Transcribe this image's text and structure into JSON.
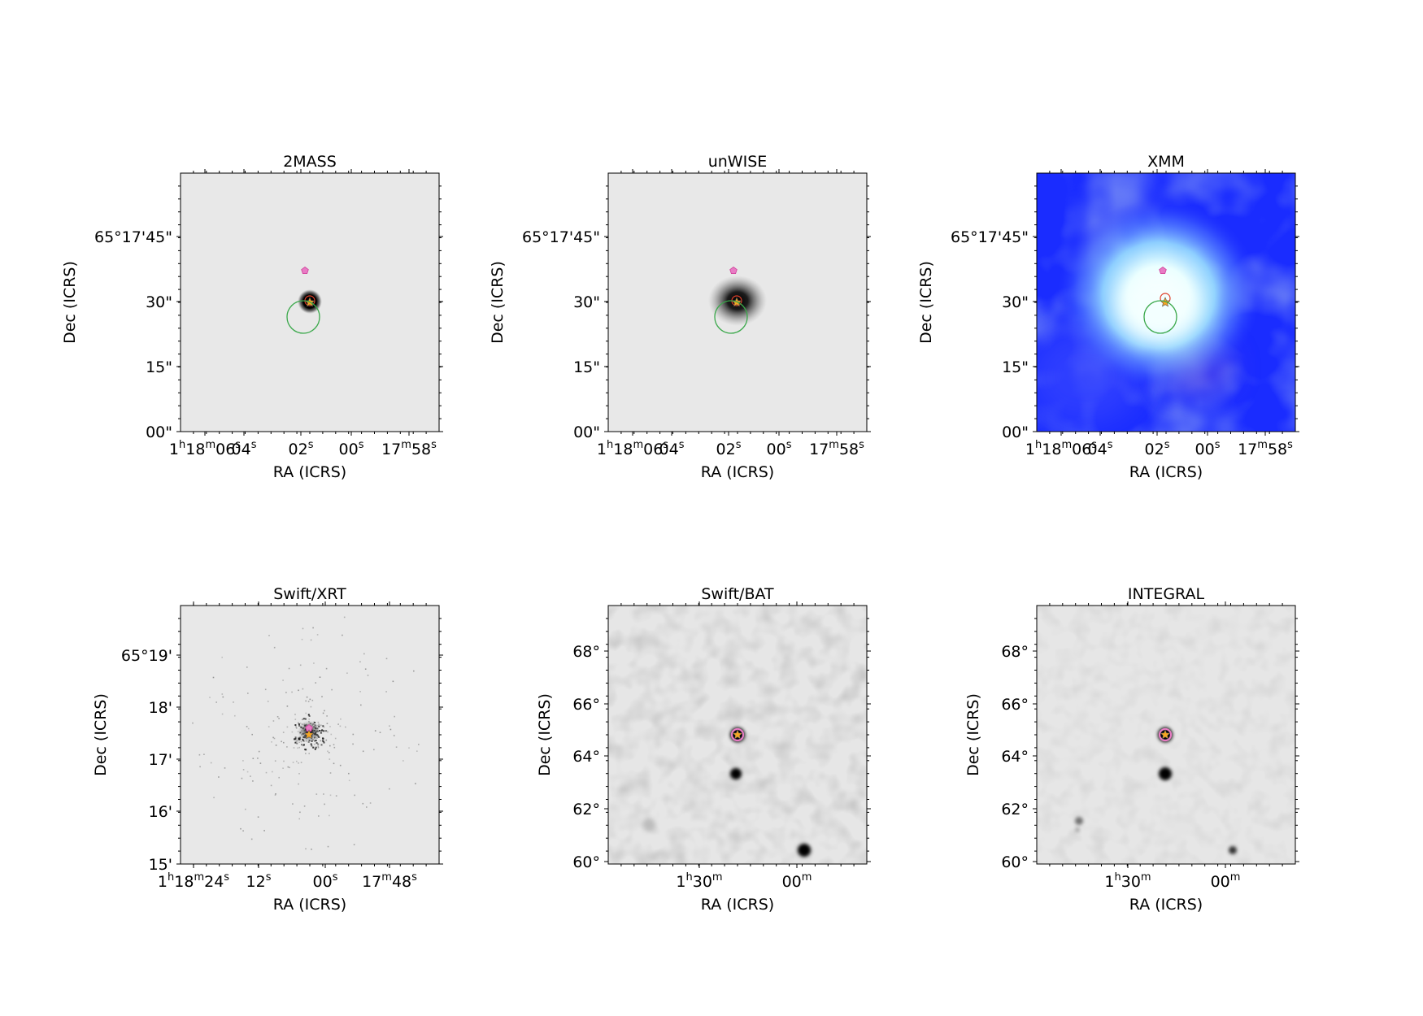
{
  "figure": {
    "panels": [
      {
        "id": "p2mass",
        "title": "2MASS",
        "xlabel": "RA (ICRS)",
        "ylabel": "Dec (ICRS)",
        "image_style": "grey-sharp-source",
        "markers": [
          "pink-pentagon",
          "red-circle",
          "orange-star",
          "green-circle"
        ],
        "yticks": [
          "65°17'45\"",
          "30\"",
          "15\"",
          "00\""
        ],
        "xticks": [
          [
            [
              "1",
              "h"
            ],
            [
              "18",
              "m"
            ],
            [
              "06",
              "s"
            ]
          ],
          [
            [
              "04",
              "s"
            ]
          ],
          [
            [
              "02",
              "s"
            ]
          ],
          [
            [
              "00",
              "s"
            ]
          ],
          [
            [
              "17",
              "m"
            ],
            [
              "58",
              "s"
            ]
          ]
        ]
      },
      {
        "id": "punwise",
        "title": "unWISE",
        "xlabel": "RA (ICRS)",
        "ylabel": "Dec (ICRS)",
        "image_style": "grey-diffuse-source",
        "markers": [
          "pink-pentagon",
          "red-circle",
          "orange-star",
          "green-circle"
        ],
        "yticks": [
          "65°17'45\"",
          "30\"",
          "15\"",
          "00\""
        ],
        "xticks": [
          [
            [
              "1",
              "h"
            ],
            [
              "18",
              "m"
            ],
            [
              "06",
              "s"
            ]
          ],
          [
            [
              "04",
              "s"
            ]
          ],
          [
            [
              "02",
              "s"
            ]
          ],
          [
            [
              "00",
              "s"
            ]
          ],
          [
            [
              "17",
              "m"
            ],
            [
              "58",
              "s"
            ]
          ]
        ]
      },
      {
        "id": "pxmm",
        "title": "XMM",
        "xlabel": "RA (ICRS)",
        "ylabel": "Dec (ICRS)",
        "image_style": "blue-rgb",
        "markers": [
          "pink-pentagon",
          "red-circle",
          "orange-star",
          "green-circle"
        ],
        "yticks": [
          "65°17'45\"",
          "30\"",
          "15\"",
          "00\""
        ],
        "xticks": [
          [
            [
              "1",
              "h"
            ],
            [
              "18",
              "m"
            ],
            [
              "06",
              "s"
            ]
          ],
          [
            [
              "04",
              "s"
            ]
          ],
          [
            [
              "02",
              "s"
            ]
          ],
          [
            [
              "00",
              "s"
            ]
          ],
          [
            [
              "17",
              "m"
            ],
            [
              "58",
              "s"
            ]
          ]
        ]
      },
      {
        "id": "pxrt",
        "title": "Swift/XRT",
        "xlabel": "RA (ICRS)",
        "ylabel": "Dec (ICRS)",
        "image_style": "grey-photon-events",
        "markers": [
          "pink-pentagon",
          "orange-star"
        ],
        "yticks": [
          "65°19'",
          "18'",
          "17'",
          "16'",
          "15'"
        ],
        "xticks": [
          [
            [
              "1",
              "h"
            ],
            [
              "18",
              "m"
            ],
            [
              "24",
              "s"
            ]
          ],
          [
            [
              "12",
              "s"
            ]
          ],
          [
            [
              "00",
              "s"
            ]
          ],
          [
            [
              "17",
              "m"
            ],
            [
              "48",
              "s"
            ]
          ]
        ]
      },
      {
        "id": "pbat",
        "title": "Swift/BAT",
        "xlabel": "RA (ICRS)",
        "ylabel": "Dec (ICRS)",
        "image_style": "grey-noisy-map",
        "markers": [
          "pink-circle",
          "orange-star"
        ],
        "yticks": [
          "68°",
          "66°",
          "64°",
          "62°",
          "60°"
        ],
        "xticks": [
          [
            [
              "1",
              "h"
            ],
            [
              "30",
              "m"
            ]
          ],
          [
            [
              "00",
              "m"
            ]
          ]
        ]
      },
      {
        "id": "pint",
        "title": "INTEGRAL",
        "xlabel": "RA (ICRS)",
        "ylabel": "Dec (ICRS)",
        "image_style": "grey-smooth-map",
        "markers": [
          "pink-circle",
          "orange-star"
        ],
        "yticks": [
          "68°",
          "66°",
          "64°",
          "62°",
          "60°"
        ],
        "xticks": [
          [
            [
              "1",
              "h"
            ],
            [
              "30",
              "m"
            ]
          ],
          [
            [
              "00",
              "m"
            ]
          ]
        ]
      }
    ],
    "colors": {
      "marker_pink": "#e87bc4",
      "marker_pink_edge": "#d0409a",
      "marker_red": "#e0402a",
      "marker_orange": "#f5a623",
      "marker_green": "#3aa84a",
      "grey_background": "#e8e8e8",
      "xmm_blue": "#1a2cff",
      "xmm_core": "#f4ffff"
    }
  }
}
